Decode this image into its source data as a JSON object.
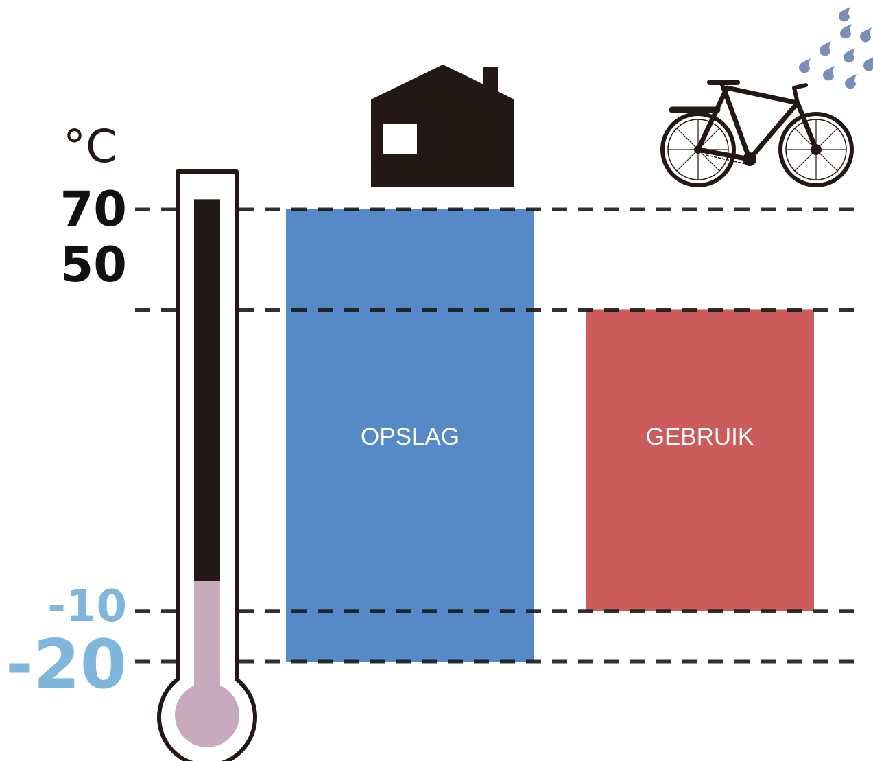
{
  "chart_data": {
    "type": "range-bar",
    "unit": "°C",
    "ticks": [
      70,
      50,
      -10,
      -20
    ],
    "ranges": [
      {
        "label": "OPSLAG",
        "min": -20,
        "max": 70,
        "color": "#5589c8",
        "icon": "house-icon"
      },
      {
        "label": "GEBRUIK",
        "min": -10,
        "max": 50,
        "color": "#cc5c5c",
        "icon": "bicycle-icon"
      }
    ],
    "tick_colors": {
      "positive": "#111111",
      "negative": "#7fb6dc"
    },
    "thermometer": {
      "top": 72,
      "split": -4,
      "dark_color": "#231815",
      "cold_color": "#c9a9bd"
    },
    "rain_color": "#7a8fb8"
  }
}
